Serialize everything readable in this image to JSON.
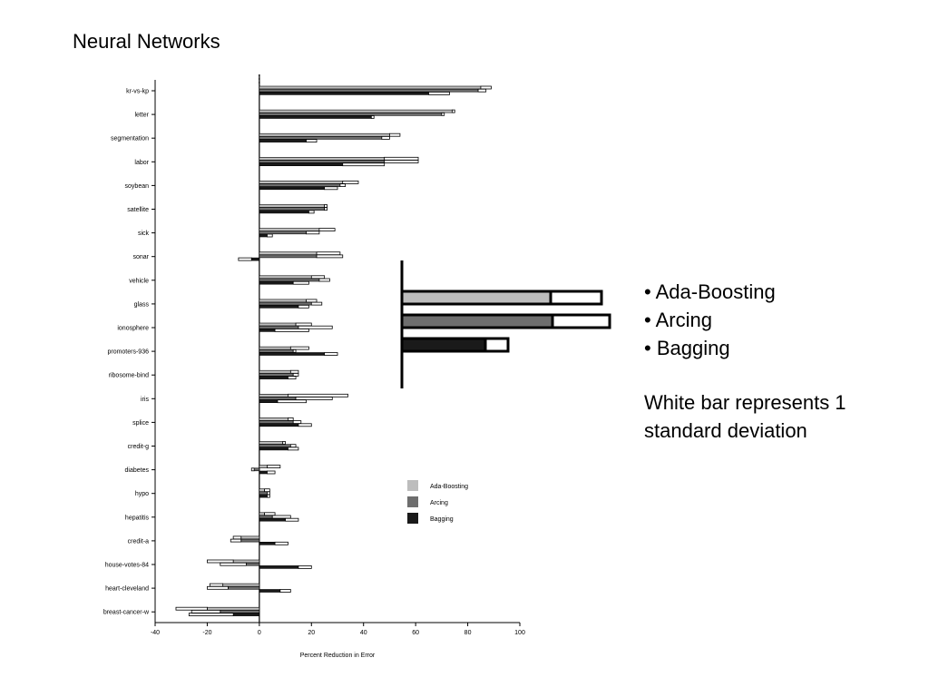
{
  "slide": {
    "title": "Neural Networks",
    "bullets": [
      "• Ada-Boosting",
      "• Arcing",
      "• Bagging"
    ],
    "note": "White bar represents 1 standard deviation"
  },
  "colors": {
    "ada_boosting": "#bdbdbd",
    "arcing": "#6e6e6e",
    "bagging": "#1a1a1a",
    "std_dev": "#ffffff"
  },
  "chart_data": {
    "type": "bar",
    "orientation": "horizontal",
    "xlabel": "Percent Reduction in Error",
    "xlim": [
      -40,
      100
    ],
    "xticks": [
      -40,
      -20,
      0,
      20,
      40,
      60,
      80,
      100
    ],
    "legend": {
      "placement": "right",
      "entries": [
        "Ada-Boosting",
        "Arcing",
        "Bagging"
      ]
    },
    "categories": [
      "kr-vs-kp",
      "letter",
      "segmentation",
      "labor",
      "soybean",
      "satellite",
      "sick",
      "sonar",
      "vehicle",
      "glass",
      "ionosphere",
      "promoters-936",
      "ribosome-bind",
      "iris",
      "splice",
      "credit-g",
      "diabetes",
      "hypo",
      "hepatitis",
      "credit-a",
      "house-votes-84",
      "heart-cleveland",
      "breast-cancer-w"
    ],
    "series": [
      {
        "name": "Ada-Boosting",
        "values": [
          85,
          74,
          50,
          48,
          32,
          25,
          23,
          22,
          20,
          18,
          14,
          12,
          12,
          11,
          11,
          9,
          3,
          2,
          2,
          -7,
          -10,
          -14,
          -20
        ],
        "std": [
          4,
          1,
          4,
          13,
          6,
          1,
          6,
          9,
          5,
          4,
          6,
          7,
          3,
          23,
          2,
          1,
          5,
          2,
          4,
          3,
          10,
          5,
          12
        ]
      },
      {
        "name": "Arcing",
        "values": [
          84,
          70,
          47,
          48,
          31,
          25,
          18,
          22,
          23,
          20,
          15,
          13,
          13,
          14,
          13,
          12,
          -2,
          3,
          5,
          -7,
          -5,
          -12,
          -15
        ],
        "std": [
          3,
          1,
          3,
          13,
          2,
          1,
          5,
          10,
          4,
          4,
          13,
          1,
          2,
          14,
          3,
          2,
          1,
          1,
          7,
          4,
          10,
          8,
          11
        ]
      },
      {
        "name": "Bagging",
        "values": [
          65,
          43,
          18,
          32,
          25,
          19,
          3,
          -3,
          13,
          15,
          6,
          25,
          11,
          7,
          15,
          11,
          3,
          3,
          10,
          6,
          15,
          8,
          -10
        ],
        "std": [
          8,
          1,
          4,
          16,
          5,
          2,
          2,
          5,
          6,
          4,
          13,
          5,
          3,
          11,
          5,
          4,
          3,
          1,
          5,
          5,
          5,
          4,
          17
        ]
      }
    ]
  }
}
